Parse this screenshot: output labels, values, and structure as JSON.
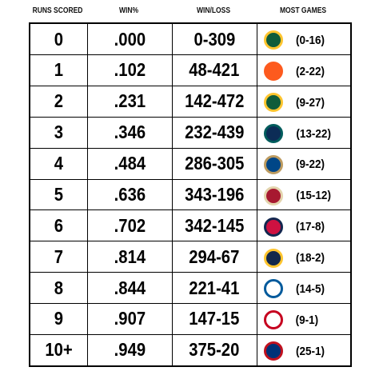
{
  "header": {
    "runs": "RUNS SCORED",
    "pct": "WIN%",
    "wl": "WIN/LOSS",
    "games": "MOST GAMES"
  },
  "table": {
    "rows": [
      [
        "0",
        ".000",
        "0-309",
        "(0-16)"
      ],
      [
        "1",
        ".102",
        "48-421",
        "(2-22)"
      ],
      [
        "2",
        ".231",
        "142-472",
        "(9-27)"
      ],
      [
        "3",
        ".346",
        "232-439",
        "(13-22)"
      ],
      [
        "4",
        ".484",
        "286-305",
        "(9-22)"
      ],
      [
        "5",
        ".636",
        "343-196",
        "(15-12)"
      ],
      [
        "6",
        ".702",
        "342-145",
        "(17-8)"
      ],
      [
        "7",
        ".814",
        "294-67",
        "(18-2)"
      ],
      [
        "8",
        ".844",
        "221-41",
        "(14-5)"
      ],
      [
        "9",
        ".907",
        "147-15",
        "(9-1)"
      ],
      [
        "10+",
        ".949",
        "375-20",
        "(25-1)"
      ]
    ]
  }
}
